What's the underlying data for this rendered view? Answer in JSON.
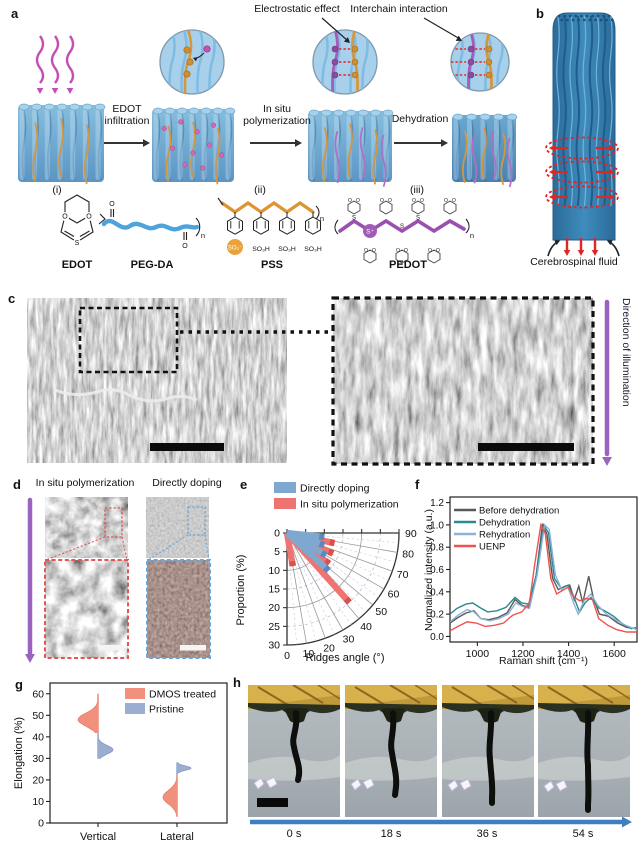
{
  "figure": {
    "labels": {
      "a": "a",
      "b": "b",
      "c": "c",
      "d": "d",
      "e": "e",
      "f": "f",
      "g": "g",
      "h": "h"
    }
  },
  "panel_a": {
    "callout_electrostatic": "Electrostatic effect",
    "callout_interchain": "Interchain interaction",
    "step1_l1": "EDOT",
    "step1_l2": "infiltration",
    "step2_l1": "In situ",
    "step2_l2": "polymerization",
    "step3": "Dehydration",
    "roman_i": "(i)",
    "roman_ii": "(ii)",
    "roman_iii": "(iii)",
    "mol_edot": "EDOT",
    "mol_pegda": "PEG-DA",
    "mol_pss": "PSS",
    "mol_pedot": "PEDOT",
    "so3_minus": "SO₃⁻",
    "so3h": "SO₃H",
    "s_plus": "S⁺",
    "atom_o": "O",
    "atom_s": "S",
    "sub_n": "n"
  },
  "panel_b": {
    "caption": "Cerebrospinal fluid"
  },
  "panel_c": {
    "direction_label": "Direction of illumination"
  },
  "panel_d": {
    "left_title": "In situ polymerization",
    "right_title": "Directly doping"
  },
  "panel_h": {
    "times": [
      "0 s",
      "18 s",
      "36 s",
      "54 s"
    ]
  },
  "colors": {
    "accent_purple": "#9a63c1",
    "magenta_arrow": "#c44fb4",
    "timeline_blue": "#3f7fc1",
    "fan_blue": "#7fa8d0",
    "fan_red": "#ef7471",
    "violin_salmon": "#f2907e",
    "violin_blue": "#9aaed2"
  },
  "chart_data": [
    {
      "id": "e",
      "type": "bar",
      "variant": "polar-fan",
      "radial_label": "Proportion (%)",
      "angle_label": "Ridges angle (°)",
      "r_ticks": [
        0,
        5,
        10,
        15,
        20,
        25,
        30
      ],
      "r_max": 30,
      "angle_ticks": [
        0,
        10,
        20,
        30,
        40,
        50,
        60,
        70,
        80,
        90
      ],
      "legend_position": "top-left",
      "series": [
        {
          "name": "Directly doping",
          "color": "#7fa8d0",
          "cap_color": "#5d88bd",
          "points": [
            {
              "angle": 84,
              "value": 10
            },
            {
              "angle": 72,
              "value": 10.5
            },
            {
              "angle": 60,
              "value": 12
            },
            {
              "angle": 48,
              "value": 15
            }
          ]
        },
        {
          "name": "In situ polymerization",
          "color": "#ef7471",
          "cap_color": "#dd4f4c",
          "points": [
            {
              "angle": 78,
              "value": 13
            },
            {
              "angle": 66,
              "value": 13.5
            },
            {
              "angle": 54,
              "value": 14
            },
            {
              "angle": 42,
              "value": 25
            },
            {
              "angle": 10,
              "value": 9
            }
          ]
        }
      ]
    },
    {
      "id": "f",
      "type": "line",
      "xlabel": "Raman shift (cm⁻¹)",
      "ylabel": "Normalized intensity (a.u.)",
      "xlim": [
        880,
        1700
      ],
      "ylim": [
        -0.05,
        1.25
      ],
      "x_ticks": [
        1000,
        1200,
        1400,
        1600
      ],
      "y_ticks": [
        0.0,
        0.2,
        0.4,
        0.6,
        0.8,
        1.0,
        1.2
      ],
      "legend_position": "top-left",
      "series": [
        {
          "name": "Before dehydration",
          "color": "#595959",
          "points": [
            [
              880,
              0.12
            ],
            [
              915,
              0.17
            ],
            [
              950,
              0.21
            ],
            [
              985,
              0.23
            ],
            [
              1015,
              0.16
            ],
            [
              1050,
              0.15
            ],
            [
              1090,
              0.17
            ],
            [
              1130,
              0.21
            ],
            [
              1165,
              0.33
            ],
            [
              1195,
              0.28
            ],
            [
              1225,
              0.26
            ],
            [
              1255,
              0.5
            ],
            [
              1285,
              1.0
            ],
            [
              1305,
              0.92
            ],
            [
              1330,
              0.52
            ],
            [
              1355,
              0.42
            ],
            [
              1385,
              0.45
            ],
            [
              1405,
              0.46
            ],
            [
              1425,
              0.33
            ],
            [
              1445,
              0.45
            ],
            [
              1462,
              0.3
            ],
            [
              1488,
              0.54
            ],
            [
              1508,
              0.35
            ],
            [
              1535,
              0.2
            ],
            [
              1575,
              0.18
            ],
            [
              1615,
              0.12
            ],
            [
              1655,
              0.08
            ],
            [
              1700,
              0.07
            ]
          ]
        },
        {
          "name": "Dehydration",
          "color": "#2a8a8e",
          "points": [
            [
              880,
              0.2
            ],
            [
              910,
              0.25
            ],
            [
              950,
              0.29
            ],
            [
              980,
              0.3
            ],
            [
              1010,
              0.26
            ],
            [
              1045,
              0.22
            ],
            [
              1085,
              0.23
            ],
            [
              1125,
              0.26
            ],
            [
              1165,
              0.35
            ],
            [
              1195,
              0.3
            ],
            [
              1225,
              0.29
            ],
            [
              1258,
              0.55
            ],
            [
              1290,
              1.0
            ],
            [
              1312,
              0.93
            ],
            [
              1338,
              0.52
            ],
            [
              1368,
              0.43
            ],
            [
              1398,
              0.46
            ],
            [
              1422,
              0.36
            ],
            [
              1448,
              0.22
            ],
            [
              1472,
              0.3
            ],
            [
              1498,
              0.35
            ],
            [
              1528,
              0.26
            ],
            [
              1558,
              0.23
            ],
            [
              1598,
              0.18
            ],
            [
              1638,
              0.11
            ],
            [
              1675,
              0.07
            ],
            [
              1700,
              0.08
            ]
          ]
        },
        {
          "name": "Rehydration",
          "color": "#8fb0d8",
          "points": [
            [
              880,
              0.13
            ],
            [
              915,
              0.19
            ],
            [
              955,
              0.24
            ],
            [
              985,
              0.22
            ],
            [
              1015,
              0.16
            ],
            [
              1055,
              0.14
            ],
            [
              1095,
              0.16
            ],
            [
              1135,
              0.2
            ],
            [
              1168,
              0.3
            ],
            [
              1198,
              0.27
            ],
            [
              1228,
              0.25
            ],
            [
              1262,
              0.55
            ],
            [
              1295,
              1.0
            ],
            [
              1315,
              0.96
            ],
            [
              1342,
              0.55
            ],
            [
              1372,
              0.41
            ],
            [
              1398,
              0.44
            ],
            [
              1420,
              0.31
            ],
            [
              1442,
              0.2
            ],
            [
              1468,
              0.32
            ],
            [
              1498,
              0.38
            ],
            [
              1528,
              0.28
            ],
            [
              1565,
              0.2
            ],
            [
              1605,
              0.15
            ],
            [
              1650,
              0.1
            ],
            [
              1700,
              0.06
            ]
          ]
        },
        {
          "name": "UENP",
          "color": "#ef5350",
          "points": [
            [
              880,
              0.05
            ],
            [
              915,
              0.09
            ],
            [
              955,
              0.13
            ],
            [
              995,
              0.12
            ],
            [
              1035,
              0.09
            ],
            [
              1075,
              0.1
            ],
            [
              1115,
              0.12
            ],
            [
              1155,
              0.19
            ],
            [
              1195,
              0.22
            ],
            [
              1228,
              0.3
            ],
            [
              1252,
              0.65
            ],
            [
              1278,
              1.0
            ],
            [
              1298,
              0.92
            ],
            [
              1322,
              0.52
            ],
            [
              1348,
              0.38
            ],
            [
              1378,
              0.42
            ],
            [
              1398,
              0.44
            ],
            [
              1420,
              0.36
            ],
            [
              1448,
              0.32
            ],
            [
              1478,
              0.34
            ],
            [
              1505,
              0.33
            ],
            [
              1532,
              0.16
            ],
            [
              1572,
              0.1
            ],
            [
              1612,
              0.06
            ],
            [
              1655,
              0.04
            ],
            [
              1700,
              0.04
            ]
          ]
        }
      ]
    },
    {
      "id": "g",
      "type": "violin",
      "ylabel": "Elongation (%)",
      "ylim": [
        0,
        65
      ],
      "y_ticks": [
        0,
        10,
        20,
        30,
        40,
        50,
        60
      ],
      "categories": [
        "Vertical",
        "Lateral"
      ],
      "legend_position": "top-right",
      "series": [
        {
          "name": "DMOS treated",
          "color": "#f2907e",
          "edge": "#e87a66",
          "side": "left",
          "violins": [
            {
              "category": "Vertical",
              "min": 42,
              "max": 60,
              "peak": 48,
              "width": 20
            },
            {
              "category": "Lateral",
              "min": 3,
              "max": 22,
              "peak": 12,
              "width": 14
            }
          ]
        },
        {
          "name": "Pristine",
          "color": "#9aaed2",
          "edge": "#8397c2",
          "side": "right",
          "violins": [
            {
              "category": "Vertical",
              "min": 30,
              "max": 42,
              "peak": 34,
              "width": 15
            },
            {
              "category": "Lateral",
              "min": 22,
              "max": 28,
              "peak": 25.5,
              "width": 14
            }
          ]
        }
      ]
    }
  ]
}
